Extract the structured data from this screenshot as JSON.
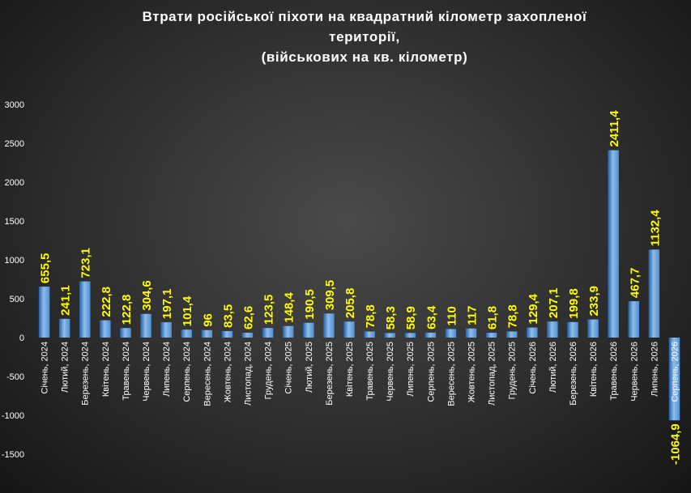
{
  "chart_data": {
    "type": "bar",
    "title_lines": [
      "Втрати російської піхоти на квадратний кілометр захопленої",
      "території,",
      "(військових на кв. кілометр)"
    ],
    "categories": [
      "Січень, 2024",
      "Лютий, 2024",
      "Березень, 2024",
      "Квітень, 2024",
      "Травень, 2024",
      "Червень, 2024",
      "Липень, 2024",
      "Серпень, 2024",
      "Вересень, 2024",
      "Жовтень, 2024",
      "Листопад, 2024",
      "Грудень, 2024",
      "Січень, 2025",
      "Лютий, 2025",
      "Березень, 2025",
      "Квітень, 2025",
      "Травень, 2025",
      "Червень, 2025",
      "Липень, 2025",
      "Серпень, 2025",
      "Вересень, 2025",
      "Жовтень, 2025",
      "Листопад, 2025",
      "Грудень, 2025",
      "Січень, 2026",
      "Лютий, 2026",
      "Березень, 2026",
      "Квітень, 2026",
      "Травень, 2026",
      "Червень, 2026",
      "Липень, 2026",
      "Серпень, 2026"
    ],
    "values": [
      655.5,
      241.1,
      723.1,
      222.8,
      122.8,
      304.6,
      197.1,
      101.4,
      96,
      83.5,
      62.6,
      123.5,
      148.4,
      190.5,
      309.5,
      205.8,
      78.8,
      58.3,
      58.9,
      63.4,
      110,
      117,
      61.8,
      78.8,
      129.4,
      207.1,
      199.8,
      233.9,
      2411.4,
      467.7,
      1132.4,
      -1064.9
    ],
    "value_labels": [
      "655,5",
      "241,1",
      "723,1",
      "222,8",
      "122,8",
      "304,6",
      "197,1",
      "101,4",
      "96",
      "83,5",
      "62,6",
      "123,5",
      "148,4",
      "190,5",
      "309,5",
      "205,8",
      "78,8",
      "58,3",
      "58,9",
      "63,4",
      "110",
      "117",
      "61,8",
      "78,8",
      "129,4",
      "207,1",
      "199,8",
      "233,9",
      "2411,4",
      "467,7",
      "1132,4",
      "-1064,9"
    ],
    "yticks": [
      -1500,
      -1000,
      -500,
      0,
      500,
      1000,
      1500,
      2000,
      2500,
      3000
    ],
    "ylim": [
      -1500,
      3000
    ],
    "grid": false,
    "legend": "none",
    "colors": {
      "bar_top": "#8fbde9",
      "bar_mid": "#4e8ed3",
      "bar_bottom": "#1f5ea8",
      "label": "#ffff00",
      "text": "#ffffff"
    }
  }
}
